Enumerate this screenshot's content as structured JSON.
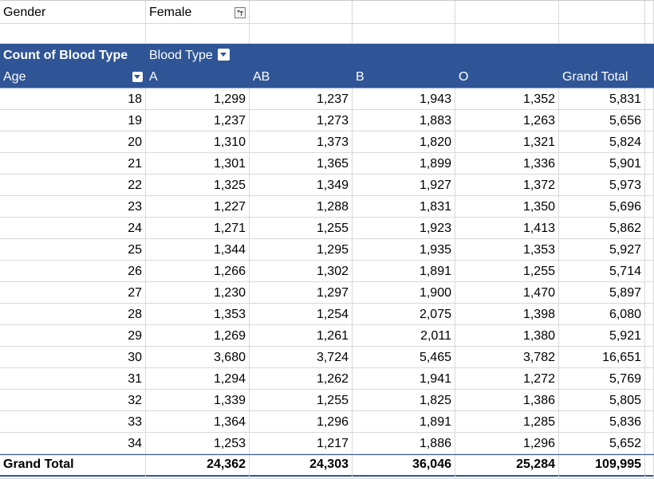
{
  "filter": {
    "label": "Gender",
    "value": "Female"
  },
  "header": {
    "values_label": "Count of Blood Type",
    "columns_label": "Blood Type",
    "rows_label": "Age",
    "columns": [
      "A",
      "AB",
      "B",
      "O",
      "Grand Total"
    ]
  },
  "rows": [
    {
      "age": "18",
      "A": "1,299",
      "AB": "1,237",
      "B": "1,943",
      "O": "1,352",
      "total": "5,831"
    },
    {
      "age": "19",
      "A": "1,237",
      "AB": "1,273",
      "B": "1,883",
      "O": "1,263",
      "total": "5,656"
    },
    {
      "age": "20",
      "A": "1,310",
      "AB": "1,373",
      "B": "1,820",
      "O": "1,321",
      "total": "5,824"
    },
    {
      "age": "21",
      "A": "1,301",
      "AB": "1,365",
      "B": "1,899",
      "O": "1,336",
      "total": "5,901"
    },
    {
      "age": "22",
      "A": "1,325",
      "AB": "1,349",
      "B": "1,927",
      "O": "1,372",
      "total": "5,973"
    },
    {
      "age": "23",
      "A": "1,227",
      "AB": "1,288",
      "B": "1,831",
      "O": "1,350",
      "total": "5,696"
    },
    {
      "age": "24",
      "A": "1,271",
      "AB": "1,255",
      "B": "1,923",
      "O": "1,413",
      "total": "5,862"
    },
    {
      "age": "25",
      "A": "1,344",
      "AB": "1,295",
      "B": "1,935",
      "O": "1,353",
      "total": "5,927"
    },
    {
      "age": "26",
      "A": "1,266",
      "AB": "1,302",
      "B": "1,891",
      "O": "1,255",
      "total": "5,714"
    },
    {
      "age": "27",
      "A": "1,230",
      "AB": "1,297",
      "B": "1,900",
      "O": "1,470",
      "total": "5,897"
    },
    {
      "age": "28",
      "A": "1,353",
      "AB": "1,254",
      "B": "2,075",
      "O": "1,398",
      "total": "6,080"
    },
    {
      "age": "29",
      "A": "1,269",
      "AB": "1,261",
      "B": "2,011",
      "O": "1,380",
      "total": "5,921"
    },
    {
      "age": "30",
      "A": "3,680",
      "AB": "3,724",
      "B": "5,465",
      "O": "3,782",
      "total": "16,651"
    },
    {
      "age": "31",
      "A": "1,294",
      "AB": "1,262",
      "B": "1,941",
      "O": "1,272",
      "total": "5,769"
    },
    {
      "age": "32",
      "A": "1,339",
      "AB": "1,255",
      "B": "1,825",
      "O": "1,386",
      "total": "5,805"
    },
    {
      "age": "33",
      "A": "1,364",
      "AB": "1,296",
      "B": "1,891",
      "O": "1,285",
      "total": "5,836"
    },
    {
      "age": "34",
      "A": "1,253",
      "AB": "1,217",
      "B": "1,886",
      "O": "1,296",
      "total": "5,652"
    }
  ],
  "grand_total": {
    "label": "Grand Total",
    "A": "24,362",
    "AB": "24,303",
    "B": "36,046",
    "O": "25,284",
    "total": "109,995"
  },
  "colors": {
    "header_band": "#2f5597",
    "header_text": "#ffffff",
    "gridline": "#d9d9d9"
  },
  "icons": {
    "filter": "filter-funnel-icon",
    "dropdown": "chevron-down-icon"
  }
}
